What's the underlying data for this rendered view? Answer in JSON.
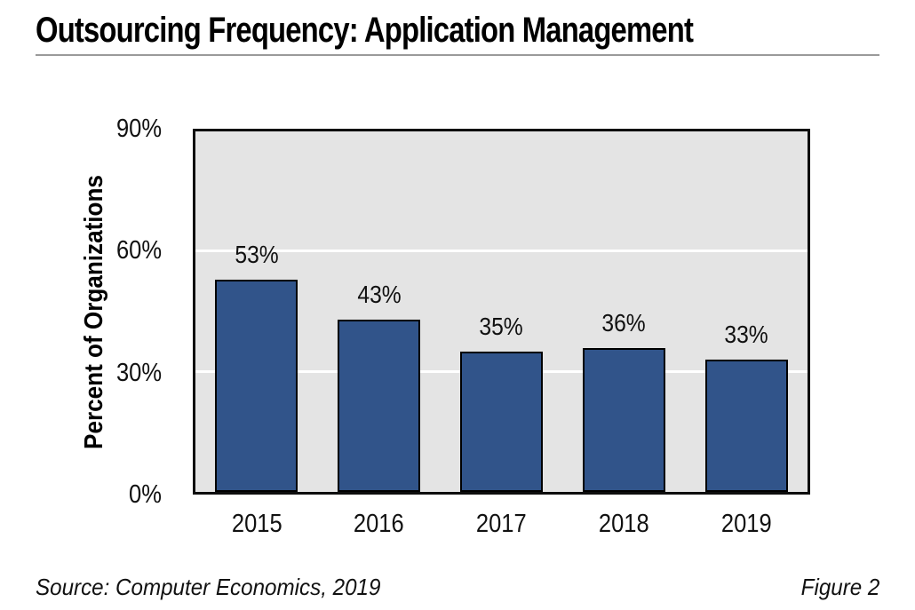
{
  "title": "Outsourcing Frequency: Application Management",
  "footer": {
    "source": "Source: Computer Economics, 2019",
    "figure_label": "Figure 2"
  },
  "chart_data": {
    "type": "bar",
    "title": "Outsourcing Frequency: Application Management",
    "categories": [
      "2015",
      "2016",
      "2017",
      "2018",
      "2019"
    ],
    "values": [
      53,
      43,
      35,
      36,
      33
    ],
    "bar_labels": [
      "53%",
      "43%",
      "35%",
      "36%",
      "33%"
    ],
    "xlabel": "",
    "ylabel": "Percent of Organizations",
    "ylim": [
      0,
      90
    ],
    "yticks": [
      {
        "value": 90,
        "label": "90%"
      },
      {
        "value": 60,
        "label": "60%"
      },
      {
        "value": 30,
        "label": "30%"
      },
      {
        "value": 0,
        "label": "0%"
      }
    ],
    "gridlines": [
      30,
      60
    ],
    "grid_on": true,
    "legend": "none",
    "colors": {
      "bar_fill": "#31548a",
      "bar_border": "#000000",
      "plot_background": "#e4e4e4",
      "gridline": "#ffffff",
      "axis_border": "#0d0d0d",
      "title_rule": "#9a9a9a"
    }
  }
}
